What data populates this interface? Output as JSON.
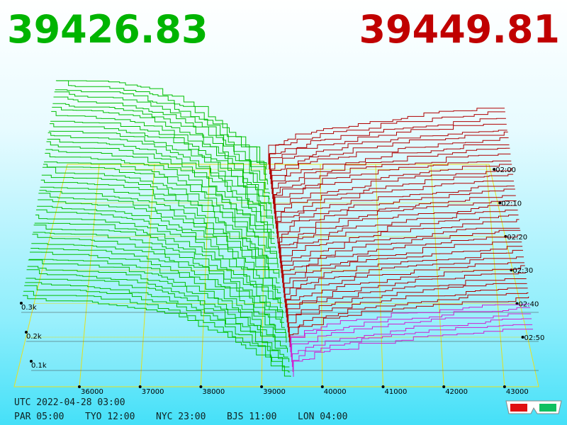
{
  "header": {
    "bid": "39426.83",
    "ask": "39449.81"
  },
  "price_axis": [
    "36000",
    "37000",
    "38000",
    "39000",
    "40000",
    "41000",
    "42000",
    "43000"
  ],
  "time_axis": [
    "02:00",
    "02:10",
    "02:20",
    "02:30",
    "02:40",
    "02:50"
  ],
  "volume_axis": [
    "0.3k",
    "0.2k",
    "0.1k"
  ],
  "footer": {
    "utc": "UTC 2022-04-28 03:00",
    "clocks": [
      "PAR 05:00",
      "TYO 12:00",
      "NYC 23:00",
      "BJS 11:00",
      "LON 04:00"
    ]
  }
}
